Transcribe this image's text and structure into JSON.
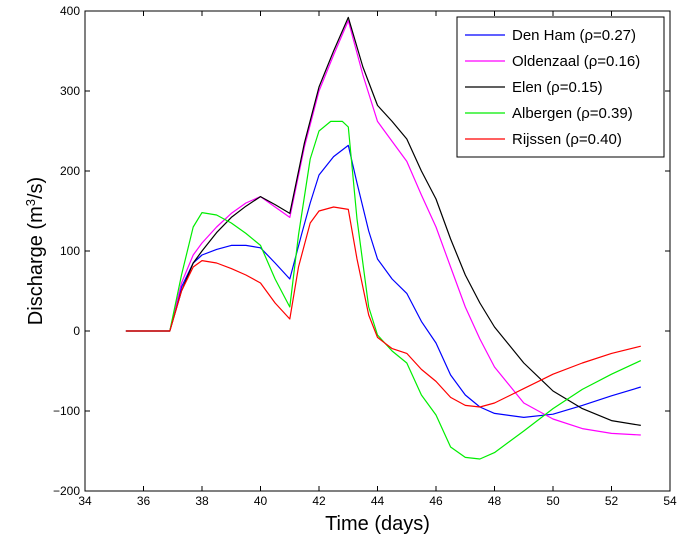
{
  "chart_data": {
    "type": "line",
    "title": "",
    "xlabel": "Time (days)",
    "ylabel_prefix": "Discharge (m",
    "ylabel_sup": "3",
    "ylabel_suffix": "/s)",
    "xlim": [
      34,
      54
    ],
    "ylim": [
      -200,
      400
    ],
    "xticks": [
      34,
      36,
      38,
      40,
      42,
      44,
      46,
      48,
      50,
      52,
      54
    ],
    "yticks": [
      -200,
      -100,
      0,
      100,
      200,
      300,
      400
    ],
    "ytick_labels": [
      "−200",
      "−100",
      "0",
      "100",
      "200",
      "300",
      "400"
    ],
    "grid": false,
    "legend_position": "top-right",
    "series": [
      {
        "name": "Den Ham (ρ=0.27)",
        "color": "#0000ff",
        "points": [
          [
            35.4,
            0
          ],
          [
            36.9,
            0
          ],
          [
            37.3,
            55
          ],
          [
            37.7,
            85
          ],
          [
            38,
            95
          ],
          [
            38.5,
            102
          ],
          [
            39,
            107
          ],
          [
            39.5,
            107
          ],
          [
            40,
            104
          ],
          [
            40.5,
            85
          ],
          [
            41,
            65
          ],
          [
            41.4,
            120
          ],
          [
            41.7,
            160
          ],
          [
            42,
            195
          ],
          [
            42.5,
            218
          ],
          [
            43,
            232
          ],
          [
            43.3,
            185
          ],
          [
            43.7,
            125
          ],
          [
            44,
            90
          ],
          [
            44.5,
            65
          ],
          [
            45,
            47
          ],
          [
            45.5,
            12
          ],
          [
            46,
            -15
          ],
          [
            46.5,
            -55
          ],
          [
            47,
            -80
          ],
          [
            47.5,
            -95
          ],
          [
            48,
            -103
          ],
          [
            49,
            -108
          ],
          [
            50,
            -104
          ],
          [
            51,
            -93
          ],
          [
            52,
            -81
          ],
          [
            53,
            -70
          ]
        ]
      },
      {
        "name": "Oldenzaal (ρ=0.16)",
        "color": "#ff00ff",
        "points": [
          [
            35.4,
            0
          ],
          [
            36.9,
            0
          ],
          [
            37.3,
            60
          ],
          [
            37.7,
            95
          ],
          [
            38,
            110
          ],
          [
            38.5,
            130
          ],
          [
            39,
            147
          ],
          [
            39.5,
            160
          ],
          [
            40,
            168
          ],
          [
            40.5,
            155
          ],
          [
            41,
            142
          ],
          [
            41.5,
            230
          ],
          [
            42,
            300
          ],
          [
            42.5,
            345
          ],
          [
            43,
            388
          ],
          [
            43.5,
            320
          ],
          [
            44,
            262
          ],
          [
            44.5,
            237
          ],
          [
            45,
            212
          ],
          [
            45.5,
            170
          ],
          [
            46,
            130
          ],
          [
            46.5,
            80
          ],
          [
            47,
            30
          ],
          [
            47.5,
            -10
          ],
          [
            48,
            -45
          ],
          [
            49,
            -90
          ],
          [
            50,
            -110
          ],
          [
            51,
            -122
          ],
          [
            52,
            -128
          ],
          [
            53,
            -130
          ]
        ]
      },
      {
        "name": "Elen (ρ=0.15)",
        "color": "#000000",
        "points": [
          [
            35.4,
            0
          ],
          [
            36.9,
            0
          ],
          [
            37.3,
            50
          ],
          [
            37.7,
            85
          ],
          [
            38,
            100
          ],
          [
            38.5,
            123
          ],
          [
            39,
            142
          ],
          [
            39.5,
            156
          ],
          [
            40,
            168
          ],
          [
            40.5,
            158
          ],
          [
            41,
            147
          ],
          [
            41.5,
            235
          ],
          [
            42,
            305
          ],
          [
            42.5,
            350
          ],
          [
            43,
            392
          ],
          [
            43.5,
            330
          ],
          [
            44,
            282
          ],
          [
            44.5,
            262
          ],
          [
            45,
            240
          ],
          [
            45.5,
            200
          ],
          [
            46,
            165
          ],
          [
            46.5,
            115
          ],
          [
            47,
            70
          ],
          [
            47.5,
            35
          ],
          [
            48,
            5
          ],
          [
            49,
            -40
          ],
          [
            50,
            -75
          ],
          [
            51,
            -97
          ],
          [
            52,
            -112
          ],
          [
            53,
            -118
          ]
        ]
      },
      {
        "name": "Albergen (ρ=0.39)",
        "color": "#00ee00",
        "points": [
          [
            35.4,
            0
          ],
          [
            36.9,
            0
          ],
          [
            37.3,
            70
          ],
          [
            37.7,
            130
          ],
          [
            38,
            148
          ],
          [
            38.5,
            145
          ],
          [
            39,
            135
          ],
          [
            39.5,
            122
          ],
          [
            40,
            107
          ],
          [
            40.5,
            65
          ],
          [
            41,
            30
          ],
          [
            41.3,
            120
          ],
          [
            41.7,
            215
          ],
          [
            42,
            250
          ],
          [
            42.4,
            262
          ],
          [
            42.8,
            262
          ],
          [
            43,
            255
          ],
          [
            43.3,
            140
          ],
          [
            43.7,
            30
          ],
          [
            44,
            -5
          ],
          [
            44.5,
            -25
          ],
          [
            45,
            -40
          ],
          [
            45.5,
            -80
          ],
          [
            46,
            -105
          ],
          [
            46.5,
            -145
          ],
          [
            47,
            -158
          ],
          [
            47.5,
            -160
          ],
          [
            48,
            -152
          ],
          [
            49,
            -125
          ],
          [
            50,
            -97
          ],
          [
            51,
            -73
          ],
          [
            52,
            -54
          ],
          [
            53,
            -37
          ]
        ]
      },
      {
        "name": "Rijssen (ρ=0.40)",
        "color": "#ff0000",
        "points": [
          [
            35.4,
            0
          ],
          [
            36.9,
            0
          ],
          [
            37.3,
            50
          ],
          [
            37.7,
            80
          ],
          [
            38,
            88
          ],
          [
            38.5,
            85
          ],
          [
            39,
            78
          ],
          [
            39.5,
            70
          ],
          [
            40,
            60
          ],
          [
            40.5,
            35
          ],
          [
            41,
            15
          ],
          [
            41.3,
            80
          ],
          [
            41.7,
            135
          ],
          [
            42,
            150
          ],
          [
            42.5,
            155
          ],
          [
            43,
            152
          ],
          [
            43.3,
            90
          ],
          [
            43.7,
            20
          ],
          [
            44,
            -8
          ],
          [
            44.5,
            -22
          ],
          [
            45,
            -28
          ],
          [
            45.5,
            -48
          ],
          [
            46,
            -63
          ],
          [
            46.5,
            -83
          ],
          [
            47,
            -93
          ],
          [
            47.5,
            -95
          ],
          [
            48,
            -90
          ],
          [
            49,
            -72
          ],
          [
            50,
            -54
          ],
          [
            51,
            -40
          ],
          [
            52,
            -28
          ],
          [
            53,
            -19
          ]
        ]
      }
    ]
  }
}
